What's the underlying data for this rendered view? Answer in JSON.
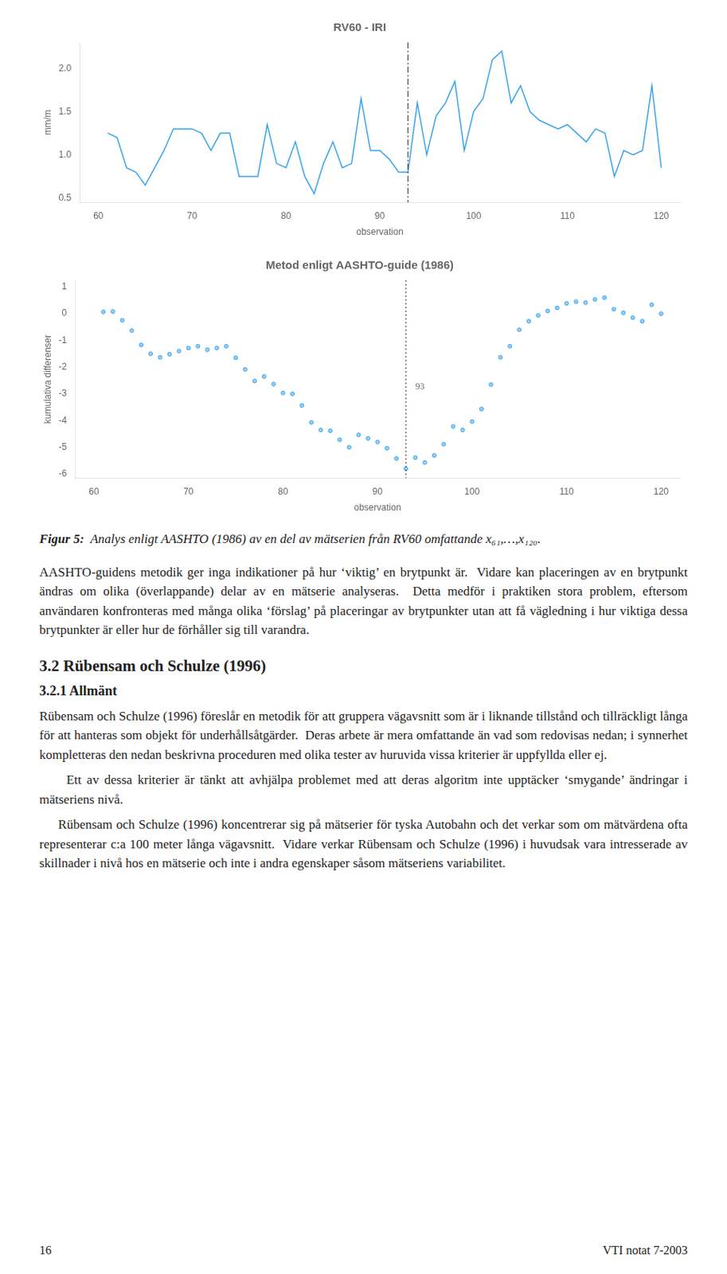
{
  "chart_data": [
    {
      "type": "line",
      "title": "RV60 - IRI",
      "xlabel": "observation",
      "ylabel": "mm/m",
      "x": [
        61,
        62,
        63,
        64,
        65,
        66,
        67,
        68,
        69,
        70,
        71,
        72,
        73,
        74,
        75,
        76,
        77,
        78,
        79,
        80,
        81,
        82,
        83,
        84,
        85,
        86,
        87,
        88,
        89,
        90,
        91,
        92,
        93,
        94,
        95,
        96,
        97,
        98,
        99,
        100,
        101,
        102,
        103,
        104,
        105,
        106,
        107,
        108,
        109,
        110,
        111,
        112,
        113,
        114,
        115,
        116,
        117,
        118,
        119,
        120
      ],
      "values": [
        1.25,
        1.2,
        0.85,
        0.8,
        0.65,
        0.85,
        1.05,
        1.3,
        1.3,
        1.3,
        1.25,
        1.05,
        1.25,
        1.25,
        0.75,
        0.75,
        0.75,
        1.35,
        0.9,
        0.85,
        1.15,
        0.75,
        0.55,
        0.9,
        1.15,
        0.85,
        0.9,
        1.65,
        1.05,
        1.05,
        0.95,
        0.8,
        0.8,
        1.6,
        1.0,
        1.45,
        1.6,
        1.85,
        1.05,
        1.5,
        1.65,
        2.1,
        2.2,
        1.6,
        1.8,
        1.5,
        1.4,
        1.35,
        1.3,
        1.35,
        1.25,
        1.15,
        1.3,
        1.25,
        0.75,
        1.05,
        1.0,
        1.05,
        1.8,
        0.85
      ],
      "marker": "none",
      "line_style": "solid",
      "xlim": [
        58,
        122
      ],
      "xticks": [
        60,
        70,
        80,
        90,
        100,
        110,
        120
      ],
      "ylim": [
        0.45,
        2.3
      ],
      "yticks": [
        0.5,
        {
          "value": 1.0,
          "label": "1.0"
        },
        1.5,
        {
          "value": 2.0,
          "label": "2.0"
        }
      ],
      "grid": false,
      "vlines": [
        {
          "x": 93,
          "line_style": "dashdot"
        }
      ]
    },
    {
      "type": "scatter",
      "title": "Metod enligt AASHTO-guide (1986)",
      "xlabel": "observation",
      "ylabel": "kumulativa differenser",
      "x": [
        61,
        62,
        63,
        64,
        65,
        66,
        67,
        68,
        69,
        70,
        71,
        72,
        73,
        74,
        75,
        76,
        77,
        78,
        79,
        80,
        81,
        82,
        83,
        84,
        85,
        86,
        87,
        88,
        89,
        90,
        91,
        92,
        93,
        94,
        95,
        96,
        97,
        98,
        99,
        100,
        101,
        102,
        103,
        104,
        105,
        106,
        107,
        108,
        109,
        110,
        111,
        112,
        113,
        114,
        115,
        116,
        117,
        118,
        119,
        120
      ],
      "values": [
        0.066667,
        0.083333,
        -0.25,
        -0.633333,
        -1.166667,
        -1.5,
        -1.633333,
        -1.516667,
        -1.4,
        -1.283333,
        -1.216667,
        -1.35,
        -1.283333,
        -1.216667,
        -1.65,
        -2.083333,
        -2.516667,
        -2.35,
        -2.633333,
        -2.966667,
        -3.0,
        -3.433333,
        -4.066667,
        -4.35,
        -4.383333,
        -4.716667,
        -5.0,
        -4.533333,
        -4.666667,
        -4.8,
        -5.033333,
        -5.416667,
        -5.8,
        -5.383333,
        -5.566667,
        -5.3,
        -4.883333,
        -4.216667,
        -4.35,
        -4.033333,
        -3.566667,
        -2.65,
        -1.633333,
        -1.216667,
        -0.6,
        -0.283333,
        -0.066667,
        0.1,
        0.216667,
        0.383333,
        0.45,
        0.416667,
        0.533333,
        0.6,
        0.166667,
        0.033333,
        -0.15,
        -0.283333,
        0.333333,
        0
      ],
      "marker": "dot",
      "xlim": [
        58,
        122
      ],
      "xticks": [
        60,
        70,
        80,
        90,
        100,
        110,
        120
      ],
      "ylim": [
        -6.15,
        1.25
      ],
      "yticks": [
        1,
        0,
        -1,
        -2,
        -3,
        -4,
        -5,
        -6
      ],
      "grid": false,
      "vlines": [
        {
          "x": 93,
          "line_style": "dotted"
        }
      ],
      "annotations": [
        {
          "text": "93",
          "x": 94,
          "y": -2.9
        }
      ]
    }
  ],
  "caption": {
    "bold": "Figur 5:",
    "text": "Analys enligt AASHTO (1986) av en del av mätserien från RV60 omfattande x₆₁,…,x₁₂₀."
  },
  "body": [
    {
      "p": "AASHTO-guidens metodik ger inga indikationer på hur ‘viktig’ en brytpunkt är.  Vidare kan placeringen av en brytpunkt ändras om olika (överlappande) delar av en mätserie analyseras.  Detta medför i praktiken stora problem, eftersom användaren konfronteras med många olika ‘förslag’ på placeringar av brytpunkter utan att få vägledning i hur viktiga dessa brytpunkter är eller hur de förhåller sig till varandra."
    },
    {
      "h2": "3.2 Rübensam och Schulze (1996)"
    },
    {
      "h3": "3.2.1 Allmänt"
    },
    {
      "p": "Rübensam och Schulze (1996) föreslår en metodik för att gruppera vägavsnitt som är i liknande tillstånd och tillräckligt långa för att hanteras som objekt för underhållsåtgärder.  Deras arbete är mera omfattande än vad som redovisas nedan; i synnerhet kompletteras den nedan beskrivna proceduren med olika tester av huruvida vissa kriterier är uppfyllda eller ej."
    },
    {
      "p": "     Ett av dessa kriterier är tänkt att avhjälpa problemet med att deras algoritm inte upptäcker ‘smygande’ ändringar i mätseriens nivå."
    },
    {
      "p": "     Rübensam och Schulze (1996) koncentrerar sig på mätserier för tyska Autobahn och det verkar som om mätvärdena ofta representerar c:a 100 meter långa vägavsnitt.  Vidare verkar Rübensam och Schulze (1996) i huvudsak vara intresserade av skillnader i nivå hos en mätserie och inte i andra egenskaper såsom mätseriens variabilitet."
    }
  ],
  "footer": {
    "left": "16",
    "right": "VTI notat 7-2003"
  }
}
